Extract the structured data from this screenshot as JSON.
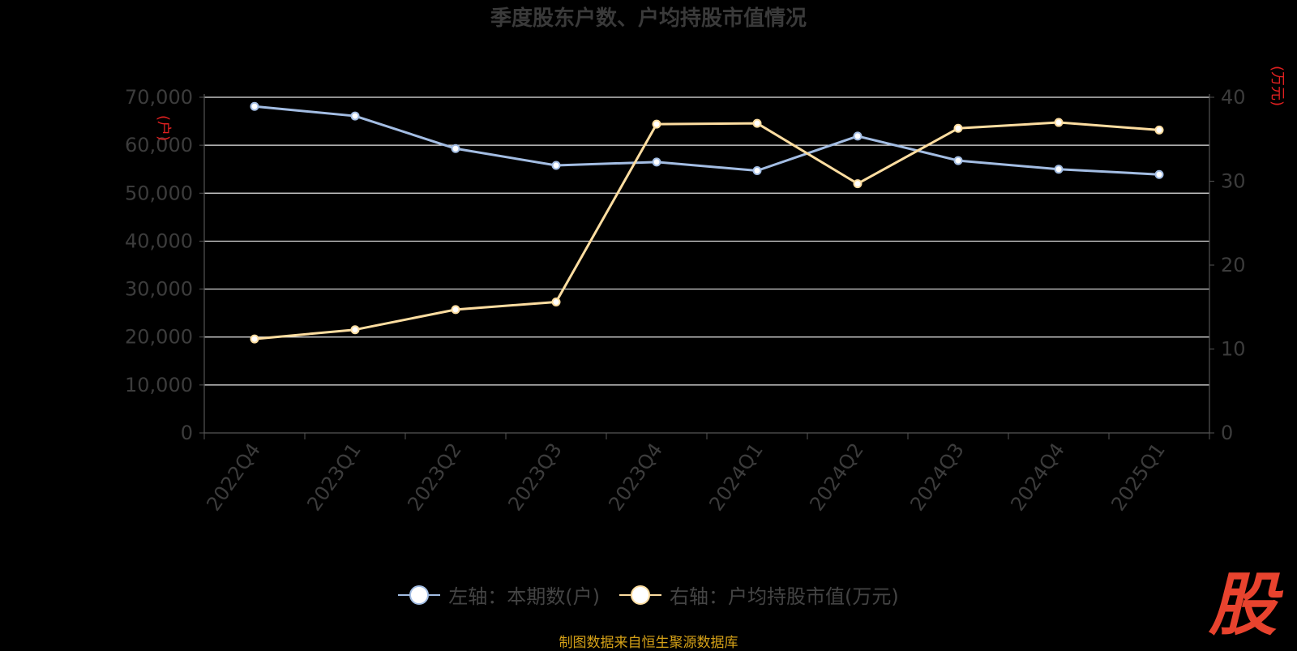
{
  "chart_data": {
    "type": "line",
    "title": "季度股东户数、户均持股市值情况",
    "categories": [
      "2022Q4",
      "2023Q1",
      "2023Q2",
      "2023Q3",
      "2023Q4",
      "2024Q1",
      "2024Q2",
      "2024Q3",
      "2024Q4",
      "2025Q1"
    ],
    "left_axis": {
      "label": "(户)",
      "ylim": [
        0,
        70000
      ],
      "ticks": [
        0,
        10000,
        20000,
        30000,
        40000,
        50000,
        60000,
        70000
      ],
      "tick_labels": [
        "0",
        "10,000",
        "20,000",
        "30,000",
        "40,000",
        "50,000",
        "60,000",
        "70,000"
      ]
    },
    "right_axis": {
      "label": "(万元)",
      "ylim": [
        0,
        40
      ],
      "ticks": [
        0,
        10,
        20,
        30,
        40
      ],
      "tick_labels": [
        "0",
        "10",
        "20",
        "30",
        "40"
      ]
    },
    "series": [
      {
        "name": "左轴：本期数(户)",
        "axis": "left",
        "color": "#a3bde3",
        "values": [
          68100,
          66100,
          59300,
          55800,
          56500,
          54700,
          61900,
          56800,
          55000,
          53900
        ]
      },
      {
        "name": "右轴：户均持股市值(万元)",
        "axis": "right",
        "color": "#fddda0",
        "values": [
          11.2,
          12.3,
          14.7,
          15.6,
          36.8,
          36.9,
          29.7,
          36.3,
          37.0,
          36.1
        ]
      }
    ],
    "grid": true,
    "legend_position": "bottom-center"
  },
  "footer": {
    "source": "制图数据来自恒生聚源数据库",
    "logo_text": "股"
  }
}
